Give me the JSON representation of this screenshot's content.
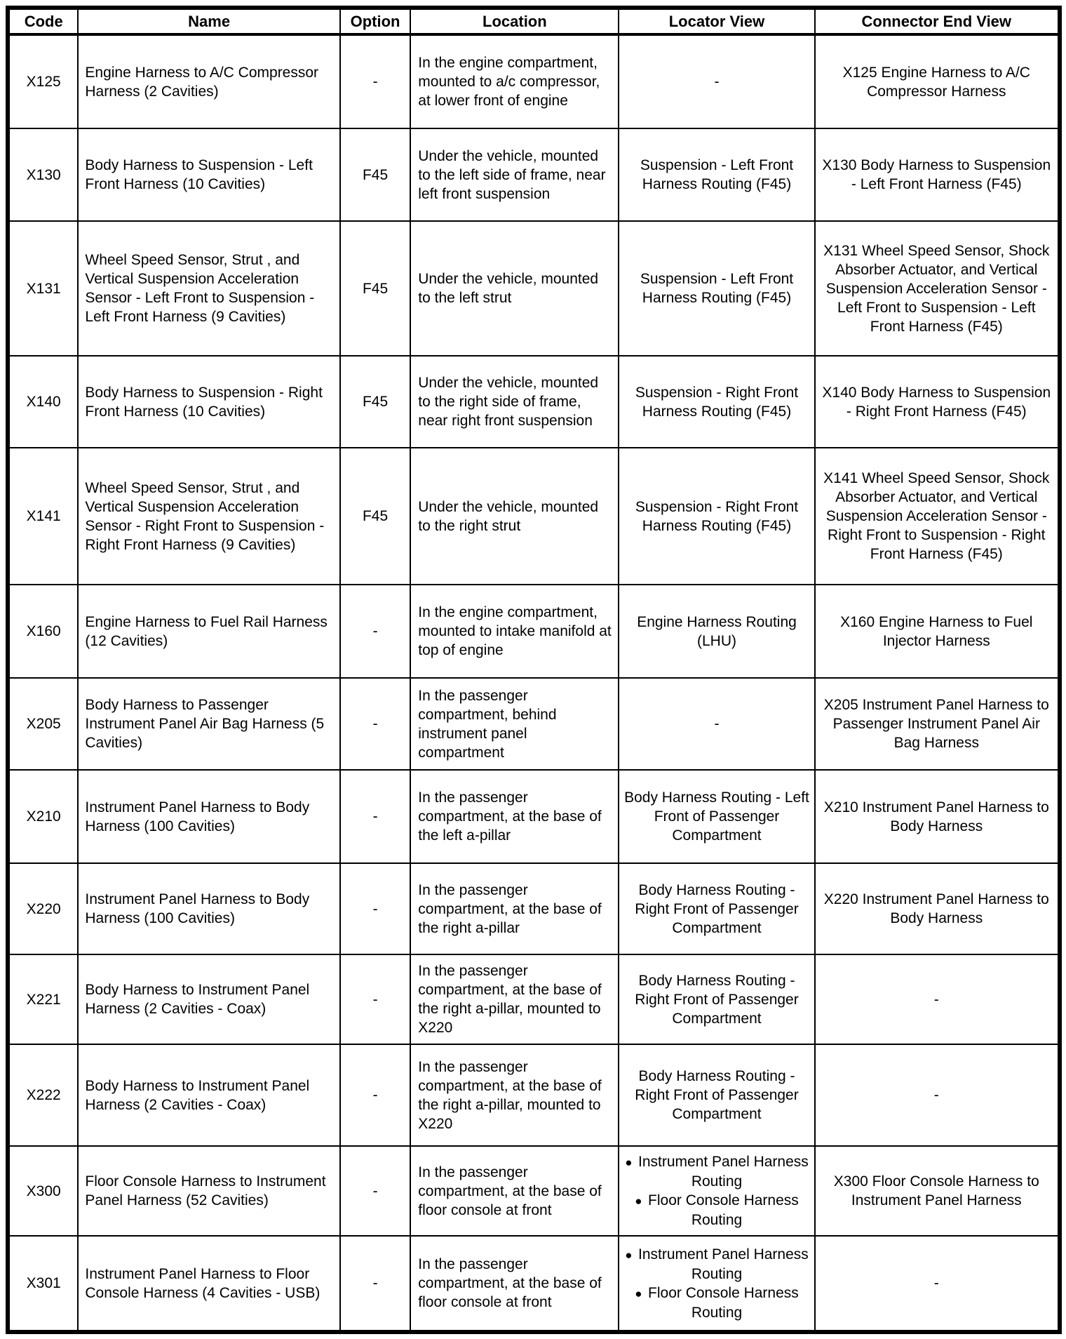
{
  "table": {
    "columns": [
      "Code",
      "Name",
      "Option",
      "Location",
      "Locator View",
      "Connector End View"
    ],
    "rows": [
      {
        "code": "X125",
        "name": "Engine Harness to A/C Compressor Harness (2 Cavities)",
        "option": "-",
        "location": "In the engine compartment, mounted to a/c compressor, at lower front of engine",
        "locator_view": "-",
        "connector_end_view": "X125 Engine Harness to A/C Compressor Harness"
      },
      {
        "code": "X130",
        "name": "Body Harness to Suspension - Left Front Harness (10 Cavities)",
        "option": "F45",
        "location": "Under the vehicle, mounted to the left side of frame, near left front suspension",
        "locator_view": "Suspension - Left Front Harness Routing (F45)",
        "connector_end_view": "X130 Body Harness to Suspension - Left Front Harness (F45)"
      },
      {
        "code": "X131",
        "name": "Wheel Speed Sensor, Strut , and Vertical Suspension Acceleration Sensor - Left Front to Suspension - Left Front Harness (9 Cavities)",
        "option": "F45",
        "location": "Under the vehicle, mounted to the left strut",
        "locator_view": "Suspension - Left Front Harness Routing (F45)",
        "connector_end_view": "X131 Wheel Speed Sensor, Shock Absorber Actuator, and Vertical Suspension Acceleration Sensor - Left Front to Suspension - Left Front Harness (F45)"
      },
      {
        "code": "X140",
        "name": "Body Harness to Suspension - Right Front Harness (10 Cavities)",
        "option": "F45",
        "location": "Under the vehicle, mounted to the right side of frame, near right front suspension",
        "locator_view": "Suspension - Right Front Harness Routing (F45)",
        "connector_end_view": "X140 Body Harness to Suspension - Right Front Harness (F45)"
      },
      {
        "code": "X141",
        "name": "Wheel Speed Sensor, Strut , and Vertical Suspension Acceleration Sensor - Right Front to Suspension - Right Front Harness (9 Cavities)",
        "option": "F45",
        "location": "Under the vehicle, mounted to the right strut",
        "locator_view": "Suspension - Right Front Harness Routing (F45)",
        "connector_end_view": "X141 Wheel Speed Sensor, Shock Absorber Actuator, and Vertical Suspension Acceleration Sensor - Right Front to Suspension - Right Front Harness (F45)"
      },
      {
        "code": "X160",
        "name": "Engine Harness to Fuel Rail Harness (12 Cavities)",
        "option": "-",
        "location": "In the engine compartment, mounted to intake manifold at top of engine",
        "locator_view": "Engine Harness Routing (LHU)",
        "connector_end_view": "X160 Engine Harness to Fuel Injector Harness"
      },
      {
        "code": "X205",
        "name": "Body Harness to Passenger Instrument Panel Air Bag Harness (5 Cavities)",
        "option": "-",
        "location": "In the passenger compartment, behind instrument panel compartment",
        "locator_view": "-",
        "connector_end_view": "X205 Instrument Panel Harness to Passenger Instrument Panel Air Bag Harness"
      },
      {
        "code": "X210",
        "name": "Instrument Panel Harness to Body Harness (100 Cavities)",
        "option": "-",
        "location": "In the passenger compartment, at the base of the left a-pillar",
        "locator_view": "Body Harness Routing - Left Front of Passenger Compartment",
        "connector_end_view": "X210 Instrument Panel Harness to Body Harness"
      },
      {
        "code": "X220",
        "name": "Instrument Panel Harness to Body Harness (100 Cavities)",
        "option": "-",
        "location": "In the passenger compartment, at the base of the right a-pillar",
        "locator_view": "Body Harness Routing - Right Front of Passenger Compartment",
        "connector_end_view": "X220 Instrument Panel Harness to Body Harness"
      },
      {
        "code": "X221",
        "name": "Body Harness to Instrument Panel Harness (2 Cavities - Coax)",
        "option": "-",
        "location": "In the passenger compartment, at the base of the right a-pillar, mounted to X220",
        "locator_view": "Body Harness Routing - Right Front of Passenger Compartment",
        "connector_end_view": "-"
      },
      {
        "code": "X222",
        "name": "Body Harness to Instrument Panel Harness (2 Cavities - Coax)",
        "option": "-",
        "location": "In the passenger compartment, at the base of the right a-pillar, mounted to X220",
        "locator_view": "Body Harness Routing - Right Front of Passenger Compartment",
        "connector_end_view": "-"
      },
      {
        "code": "X300",
        "name": "Floor Console Harness to Instrument Panel Harness (52 Cavities)",
        "option": "-",
        "location": "In the passenger compartment, at the base of floor console at front",
        "locator_view_bullets": [
          "Instrument Panel Harness Routing",
          "Floor Console Harness Routing"
        ],
        "connector_end_view": "X300 Floor Console Harness to Instrument Panel Harness"
      },
      {
        "code": "X301",
        "name": "Instrument Panel Harness to Floor Console Harness (4 Cavities - USB)",
        "option": "-",
        "location": "In the passenger compartment, at the base of floor console at front",
        "locator_view_bullets": [
          "Instrument Panel Harness Routing",
          "Floor Console Harness Routing"
        ],
        "connector_end_view": "-"
      }
    ]
  }
}
